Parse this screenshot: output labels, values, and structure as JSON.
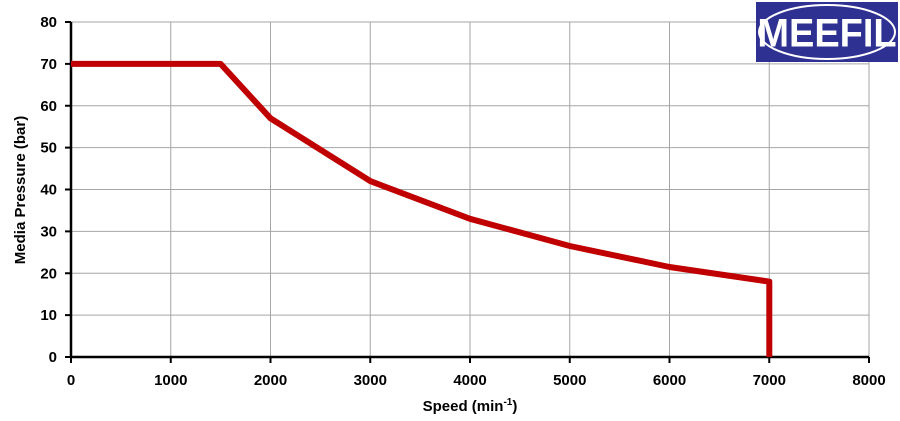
{
  "chart_data": {
    "type": "line",
    "xlabel": "Speed (min",
    "xlabel_superscript": "-1",
    "xlabel_suffix": ")",
    "ylabel": "Media Pressure (bar)",
    "xlim": [
      0,
      8000
    ],
    "ylim": [
      0,
      80
    ],
    "x_ticks": [
      "0",
      "1000",
      "2000",
      "3000",
      "4000",
      "5000",
      "6000",
      "7000",
      "8000"
    ],
    "y_ticks": [
      "0",
      "10",
      "20",
      "30",
      "40",
      "50",
      "60",
      "70",
      "80"
    ],
    "grid": true,
    "legend": "none",
    "series": [
      {
        "color": "#c00000",
        "x": [
          0,
          1500,
          2000,
          3000,
          4000,
          5000,
          6000,
          7000,
          7000
        ],
        "y": [
          70,
          70,
          57,
          42,
          33,
          26.5,
          21.5,
          18,
          0
        ]
      }
    ]
  },
  "logo": {
    "text": "MEEFIL",
    "background": "#2e3192"
  },
  "colors": {
    "grid": "#a6a6a6",
    "axis": "#000000"
  }
}
